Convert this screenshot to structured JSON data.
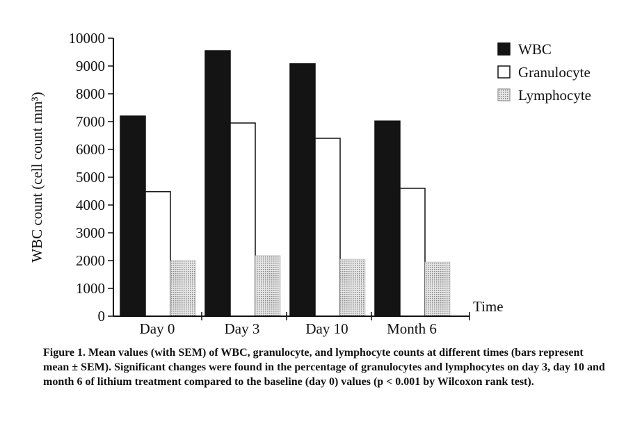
{
  "chart_data": {
    "type": "bar",
    "categories": [
      "Day 0",
      "Day 3",
      "Day 10",
      "Month 6"
    ],
    "series": [
      {
        "name": "WBC",
        "values": [
          7200,
          9550,
          9080,
          7020
        ],
        "fill": "#141414"
      },
      {
        "name": "Granulocyte",
        "values": [
          4480,
          6950,
          6400,
          4600
        ],
        "fill": "#ffffff"
      },
      {
        "name": "Lymphocyte",
        "values": [
          2000,
          2180,
          2050,
          1950
        ],
        "fill": "#c8c8c8"
      }
    ],
    "ylabel": "WBC count (cell count mm³)",
    "xlabel": "Time",
    "ylim": [
      0,
      10000
    ],
    "yticks": [
      0,
      1000,
      2000,
      3000,
      4000,
      5000,
      6000,
      7000,
      8000,
      9000,
      10000
    ],
    "legend_position": "top-right",
    "grid": false
  },
  "caption": "Figure 1. Mean values (with SEM) of WBC, granulocyte, and lymphocyte counts at different times (bars represent mean ± SEM). Significant changes were found in the percentage of granulocytes and lymphocytes on day 3, day 10 and month 6 of lithium treatment compared to the baseline (day 0) values (p < 0.001 by Wilcoxon rank test)."
}
